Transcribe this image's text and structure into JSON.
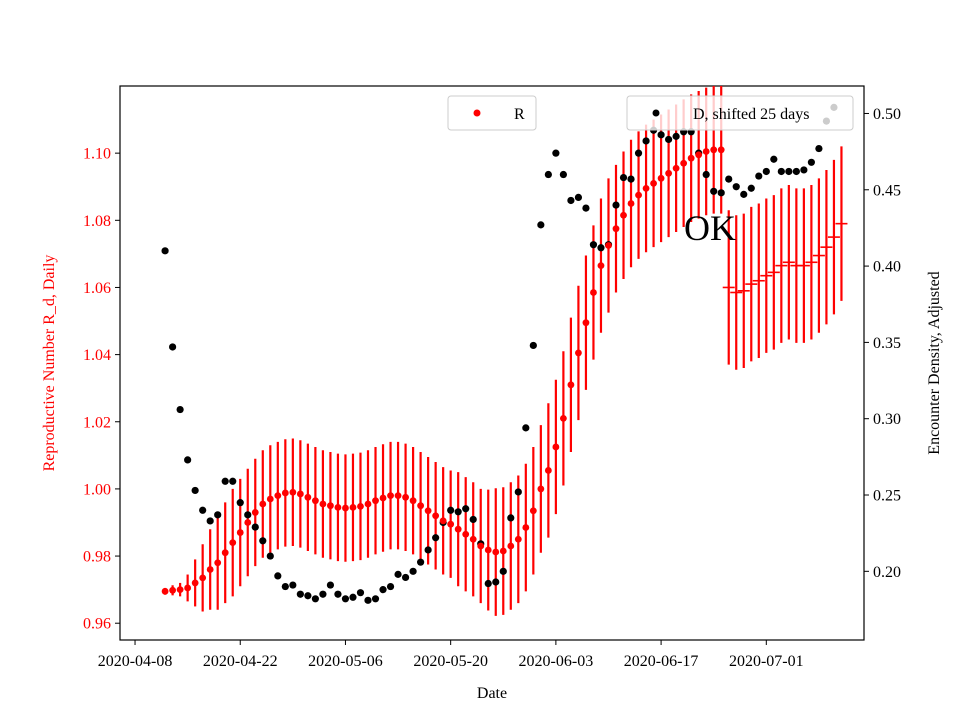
{
  "chart_data": {
    "type": "scatter",
    "xlabel": "Date",
    "ylabel_left": "Reproductive Number R_d, Daily",
    "ylabel_right": "Encounter Density, Adjusted",
    "x_ticks": [
      "2020-04-08",
      "2020-04-22",
      "2020-05-06",
      "2020-05-20",
      "2020-06-03",
      "2020-06-17",
      "2020-07-01"
    ],
    "xlim": [
      "2020-04-06",
      "2020-07-14"
    ],
    "ylim_left": [
      0.955,
      1.12
    ],
    "yticks_left": [
      "0.96",
      "0.98",
      "1.00",
      "1.02",
      "1.04",
      "1.06",
      "1.08",
      "1.10"
    ],
    "ylim_right": [
      0.155,
      0.518
    ],
    "yticks_right": [
      "0.20",
      "0.25",
      "0.30",
      "0.35",
      "0.40",
      "0.45",
      "0.50"
    ],
    "left_axis_color": "#ff0000",
    "annotation": "OK",
    "legend": {
      "R": {
        "label": "R",
        "color": "#ff0000",
        "placement": "upper center"
      },
      "D": {
        "label": "D, shifted 25 days",
        "color": "#000000",
        "placement": "upper right"
      }
    },
    "series_R": {
      "name": "R",
      "color": "#ff0000",
      "axis": "left",
      "marker_style": "dot",
      "x": [
        "2020-04-12",
        "2020-04-13",
        "2020-04-14",
        "2020-04-15",
        "2020-04-16",
        "2020-04-17",
        "2020-04-18",
        "2020-04-19",
        "2020-04-20",
        "2020-04-21",
        "2020-04-22",
        "2020-04-23",
        "2020-04-24",
        "2020-04-25",
        "2020-04-26",
        "2020-04-27",
        "2020-04-28",
        "2020-04-29",
        "2020-04-30",
        "2020-05-01",
        "2020-05-02",
        "2020-05-03",
        "2020-05-04",
        "2020-05-05",
        "2020-05-06",
        "2020-05-07",
        "2020-05-08",
        "2020-05-09",
        "2020-05-10",
        "2020-05-11",
        "2020-05-12",
        "2020-05-13",
        "2020-05-14",
        "2020-05-15",
        "2020-05-16",
        "2020-05-17",
        "2020-05-18",
        "2020-05-19",
        "2020-05-20",
        "2020-05-21",
        "2020-05-22",
        "2020-05-23",
        "2020-05-24",
        "2020-05-25",
        "2020-05-26",
        "2020-05-27",
        "2020-05-28",
        "2020-05-29",
        "2020-05-30",
        "2020-05-31",
        "2020-06-01",
        "2020-06-02",
        "2020-06-03",
        "2020-06-04",
        "2020-06-05",
        "2020-06-06",
        "2020-06-07",
        "2020-06-08",
        "2020-06-09",
        "2020-06-10",
        "2020-06-11",
        "2020-06-12",
        "2020-06-13",
        "2020-06-14",
        "2020-06-15",
        "2020-06-16",
        "2020-06-17",
        "2020-06-18",
        "2020-06-19",
        "2020-06-20",
        "2020-06-21",
        "2020-06-22",
        "2020-06-23",
        "2020-06-24",
        "2020-06-25"
      ],
      "y": [
        0.9695,
        0.9698,
        0.97,
        0.9705,
        0.972,
        0.9735,
        0.976,
        0.978,
        0.981,
        0.984,
        0.987,
        0.99,
        0.993,
        0.9955,
        0.997,
        0.998,
        0.9988,
        0.999,
        0.9985,
        0.9975,
        0.9965,
        0.9955,
        0.995,
        0.9945,
        0.9943,
        0.9945,
        0.9948,
        0.9955,
        0.9965,
        0.9973,
        0.998,
        0.998,
        0.9975,
        0.9965,
        0.995,
        0.9935,
        0.992,
        0.9905,
        0.9895,
        0.988,
        0.9865,
        0.985,
        0.983,
        0.9818,
        0.9812,
        0.9815,
        0.983,
        0.985,
        0.9885,
        0.9935,
        1.0,
        1.0055,
        1.0125,
        1.021,
        1.031,
        1.0405,
        1.0495,
        1.0585,
        1.0665,
        1.0725,
        1.0775,
        1.0815,
        1.085,
        1.0875,
        1.0895,
        1.091,
        1.0925,
        1.094,
        1.0955,
        1.097,
        1.0985,
        1.0995,
        1.1005,
        1.101,
        1.101
      ],
      "err": [
        0.001,
        0.0015,
        0.002,
        0.004,
        0.007,
        0.01,
        0.012,
        0.014,
        0.015,
        0.016,
        0.016,
        0.016,
        0.016,
        0.016,
        0.016,
        0.016,
        0.016,
        0.016,
        0.016,
        0.016,
        0.016,
        0.016,
        0.016,
        0.016,
        0.016,
        0.016,
        0.016,
        0.016,
        0.016,
        0.016,
        0.016,
        0.016,
        0.016,
        0.016,
        0.016,
        0.016,
        0.016,
        0.016,
        0.016,
        0.017,
        0.017,
        0.017,
        0.017,
        0.018,
        0.019,
        0.019,
        0.019,
        0.019,
        0.019,
        0.019,
        0.019,
        0.02,
        0.02,
        0.02,
        0.02,
        0.02,
        0.02,
        0.02,
        0.02,
        0.02,
        0.019,
        0.019,
        0.019,
        0.019,
        0.019,
        0.019,
        0.019,
        0.019,
        0.019,
        0.019,
        0.019,
        0.019,
        0.019,
        0.019,
        0.019
      ]
    },
    "series_R_late": {
      "name": "R",
      "color": "#ff0000",
      "axis": "left",
      "marker_style": "hline",
      "x": [
        "2020-06-26",
        "2020-06-27",
        "2020-06-28",
        "2020-06-29",
        "2020-06-30",
        "2020-07-01",
        "2020-07-02",
        "2020-07-03",
        "2020-07-04",
        "2020-07-05",
        "2020-07-06",
        "2020-07-07",
        "2020-07-08",
        "2020-07-09",
        "2020-07-10",
        "2020-07-11"
      ],
      "y": [
        1.06,
        1.0585,
        1.059,
        1.061,
        1.062,
        1.0635,
        1.0645,
        1.0665,
        1.0675,
        1.0665,
        1.0665,
        1.0675,
        1.0695,
        1.072,
        1.075,
        1.079
      ],
      "err": [
        0.023,
        0.023,
        0.023,
        0.023,
        0.023,
        0.023,
        0.023,
        0.023,
        0.023,
        0.023,
        0.023,
        0.023,
        0.023,
        0.023,
        0.023,
        0.023
      ]
    },
    "series_D": {
      "name": "D, shifted 25 days",
      "color": "#000000",
      "axis": "right",
      "x": [
        "2020-04-12",
        "2020-04-13",
        "2020-04-14",
        "2020-04-15",
        "2020-04-16",
        "2020-04-17",
        "2020-04-18",
        "2020-04-19",
        "2020-04-20",
        "2020-04-21",
        "2020-04-22",
        "2020-04-23",
        "2020-04-24",
        "2020-04-25",
        "2020-04-26",
        "2020-04-27",
        "2020-04-28",
        "2020-04-29",
        "2020-04-30",
        "2020-05-01",
        "2020-05-02",
        "2020-05-03",
        "2020-05-04",
        "2020-05-05",
        "2020-05-06",
        "2020-05-07",
        "2020-05-08",
        "2020-05-09",
        "2020-05-10",
        "2020-05-11",
        "2020-05-12",
        "2020-05-13",
        "2020-05-14",
        "2020-05-15",
        "2020-05-16",
        "2020-05-17",
        "2020-05-18",
        "2020-05-19",
        "2020-05-20",
        "2020-05-21",
        "2020-05-22",
        "2020-05-23",
        "2020-05-24",
        "2020-05-25",
        "2020-05-26",
        "2020-05-27",
        "2020-05-28",
        "2020-05-29",
        "2020-05-30",
        "2020-05-31",
        "2020-06-01",
        "2020-06-02",
        "2020-06-03",
        "2020-06-04",
        "2020-06-05",
        "2020-06-06",
        "2020-06-07",
        "2020-06-08",
        "2020-06-09",
        "2020-06-10",
        "2020-06-11",
        "2020-06-12",
        "2020-06-13",
        "2020-06-14",
        "2020-06-15",
        "2020-06-16",
        "2020-06-17",
        "2020-06-18",
        "2020-06-19",
        "2020-06-20",
        "2020-06-21",
        "2020-06-22",
        "2020-06-23",
        "2020-06-24",
        "2020-06-25",
        "2020-06-26",
        "2020-06-27",
        "2020-06-28",
        "2020-06-29",
        "2020-06-30",
        "2020-07-01",
        "2020-07-02",
        "2020-07-03",
        "2020-07-04",
        "2020-07-05",
        "2020-07-06",
        "2020-07-07",
        "2020-07-08",
        "2020-07-09",
        "2020-07-10"
      ],
      "y": [
        0.41,
        0.347,
        0.306,
        0.273,
        0.253,
        0.24,
        0.233,
        0.237,
        0.259,
        0.259,
        0.245,
        0.237,
        0.229,
        0.22,
        0.21,
        0.197,
        0.19,
        0.191,
        0.185,
        0.184,
        0.182,
        0.185,
        0.191,
        0.185,
        0.182,
        0.183,
        0.186,
        0.181,
        0.182,
        0.188,
        0.19,
        0.198,
        0.196,
        0.2,
        0.206,
        0.214,
        0.222,
        0.232,
        0.24,
        0.239,
        0.241,
        0.234,
        0.218,
        0.192,
        0.193,
        0.2,
        0.235,
        0.252,
        0.294,
        0.348,
        0.427,
        0.46,
        0.474,
        0.46,
        0.443,
        0.445,
        0.438,
        0.414,
        0.412,
        0.414,
        0.44,
        0.458,
        0.457,
        0.474,
        0.482,
        0.489,
        0.486,
        0.483,
        0.485,
        0.488,
        0.488,
        0.474,
        0.46,
        0.449,
        0.448,
        0.457,
        0.452,
        0.447,
        0.451,
        0.459,
        0.462,
        0.47,
        0.462,
        0.462,
        0.462,
        0.463,
        0.468,
        0.477,
        0.495,
        0.504
      ]
    }
  }
}
